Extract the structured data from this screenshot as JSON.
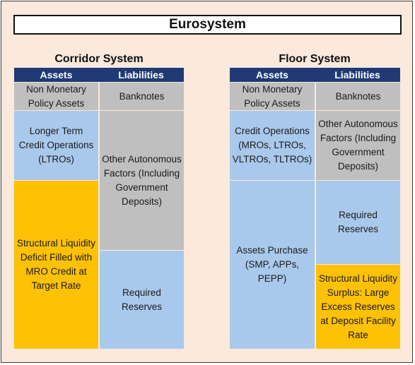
{
  "title": "Eurosystem",
  "corridor": {
    "title": "Corridor System",
    "assets_header": "Assets",
    "liabilities_header": "Liabilities",
    "assets": [
      "Non Monetary Policy Assets",
      "Longer Term Credit Operations (LTROs)",
      "Structural Liquidity Deficit Filled with MRO Credit at Target Rate"
    ],
    "liabilities": [
      "Banknotes",
      "Other Autonomous Factors (Including Government Deposits)",
      "Required Reserves"
    ]
  },
  "floor": {
    "title": "Floor System",
    "assets_header": "Assets",
    "liabilities_header": "Liabilities",
    "assets": [
      "Non Monetary Policy Assets",
      "Credit Operations (MROs, LTROs, VLTROs, TLTROs)",
      "Assets Purchase (SMP, APPs, PEPP)"
    ],
    "liabilities": [
      "Banknotes",
      "Other Autonomous Factors (Including Government Deposits)",
      "Required Reserves",
      "Structural Liquidity Surplus: Large Excess Reserves at Deposit Facility Rate"
    ]
  },
  "colors": {
    "header": "#1f3a74",
    "gray": "#bfbfbf",
    "blue": "#a9c9ec",
    "gold": "#fdc106",
    "background": "#fbe9dc"
  }
}
